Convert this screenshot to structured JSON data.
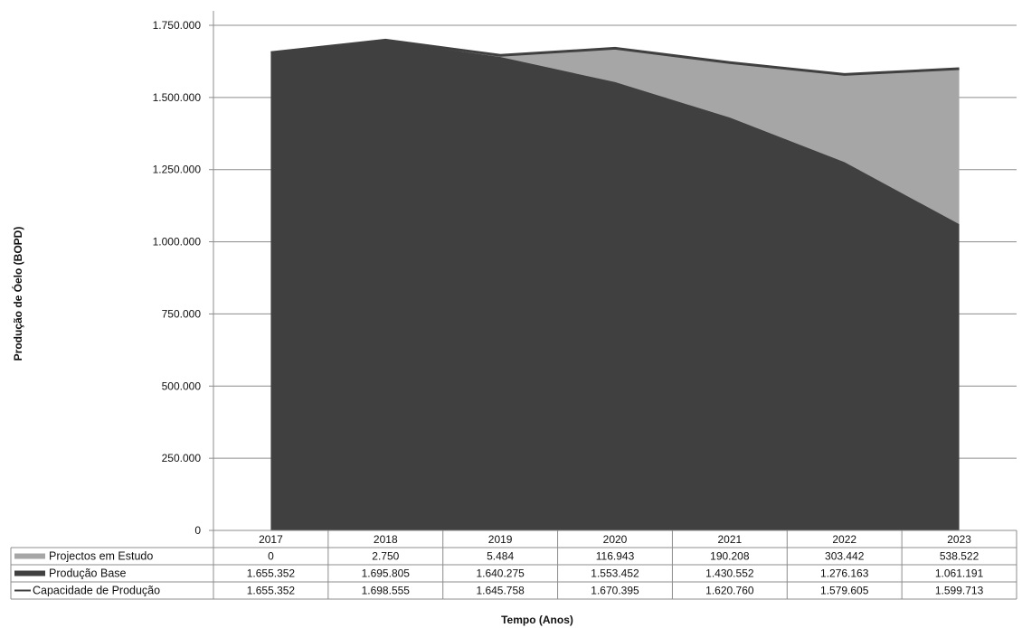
{
  "chart_data": {
    "type": "area",
    "title": "",
    "xlabel": "Tempo (Anos)",
    "ylabel": "Produção de Óelo (BOPD)",
    "categories": [
      "2017",
      "2018",
      "2019",
      "2020",
      "2021",
      "2022",
      "2023"
    ],
    "ylim": [
      0,
      1750000
    ],
    "yticks": [
      0,
      250000,
      500000,
      750000,
      1000000,
      1250000,
      1500000,
      1750000
    ],
    "ytick_labels": [
      "0",
      "250.000",
      "500.000",
      "750.000",
      "1.000.000",
      "1.250.000",
      "1.500.000",
      "1.750.000"
    ],
    "grid": true,
    "legend": "data-table-below",
    "series": [
      {
        "name": "Projectos em Estudo",
        "kind": "stacked-area",
        "color": "#a6a6a6",
        "values": [
          0,
          2750,
          5484,
          116943,
          190208,
          303442,
          538522
        ],
        "labels": [
          "0",
          "2.750",
          "5.484",
          "116.943",
          "190.208",
          "303.442",
          "538.522"
        ]
      },
      {
        "name": "Produção Base",
        "kind": "stacked-area",
        "color": "#404040",
        "values": [
          1655352,
          1695805,
          1640275,
          1553452,
          1430552,
          1276163,
          1061191
        ],
        "labels": [
          "1.655.352",
          "1.695.805",
          "1.640.275",
          "1.553.452",
          "1.430.552",
          "1.276.163",
          "1.061.191"
        ]
      },
      {
        "name": "Capacidade de Produção",
        "kind": "line",
        "color": "#404040",
        "values": [
          1655352,
          1698555,
          1645758,
          1670395,
          1620760,
          1579605,
          1599713
        ],
        "labels": [
          "1.655.352",
          "1.698.555",
          "1.645.758",
          "1.670.395",
          "1.620.760",
          "1.579.605",
          "1.599.713"
        ]
      }
    ]
  }
}
